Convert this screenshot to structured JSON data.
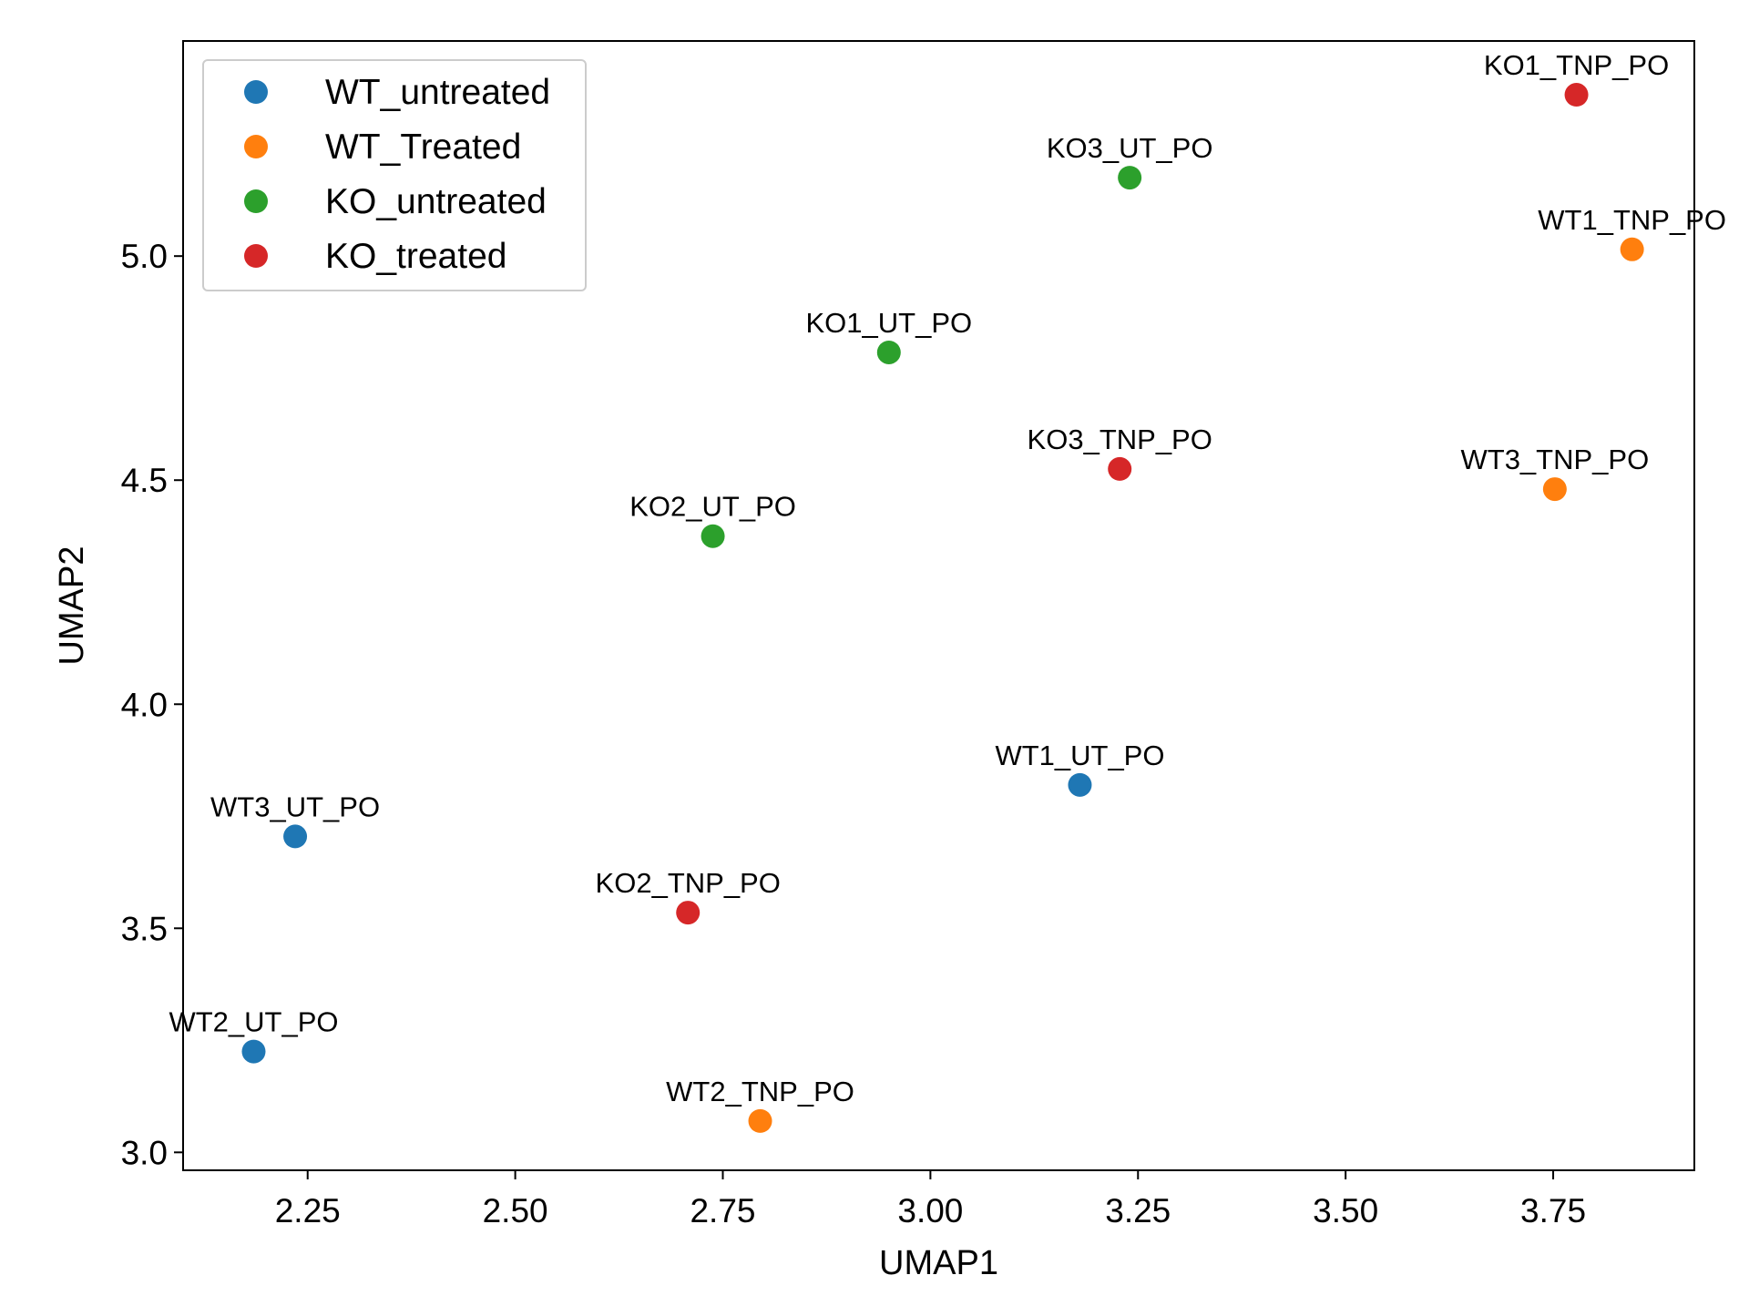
{
  "chart_data": {
    "type": "scatter",
    "title": "",
    "xlabel": "UMAP1",
    "ylabel": "UMAP2",
    "xlim": [
      2.1,
      3.92
    ],
    "ylim": [
      2.96,
      5.48
    ],
    "xticks": [
      2.25,
      2.5,
      2.75,
      3.0,
      3.25,
      3.5,
      3.75
    ],
    "xtick_labels": [
      "2.25",
      "2.50",
      "2.75",
      "3.00",
      "3.25",
      "3.50",
      "3.75"
    ],
    "yticks": [
      3.0,
      3.5,
      4.0,
      4.5,
      5.0
    ],
    "ytick_labels": [
      "3.0",
      "3.5",
      "4.0",
      "4.5",
      "5.0"
    ],
    "grid": false,
    "legend_position": "top-left",
    "series": [
      {
        "name": "WT_untreated",
        "color": "#1f77b4",
        "points": [
          {
            "label": "WT1_UT_PO",
            "x": 3.18,
            "y": 3.82
          },
          {
            "label": "WT2_UT_PO",
            "x": 2.185,
            "y": 3.225
          },
          {
            "label": "WT3_UT_PO",
            "x": 2.235,
            "y": 3.705
          }
        ]
      },
      {
        "name": "WT_Treated",
        "color": "#ff7f0e",
        "points": [
          {
            "label": "WT1_TNP_PO",
            "x": 3.845,
            "y": 5.015
          },
          {
            "label": "WT2_TNP_PO",
            "x": 2.795,
            "y": 3.07
          },
          {
            "label": "WT3_TNP_PO",
            "x": 3.752,
            "y": 4.48
          }
        ]
      },
      {
        "name": "KO_untreated",
        "color": "#2ca02c",
        "points": [
          {
            "label": "KO1_UT_PO",
            "x": 2.95,
            "y": 4.785
          },
          {
            "label": "KO2_UT_PO",
            "x": 2.738,
            "y": 4.375
          },
          {
            "label": "KO3_UT_PO",
            "x": 3.24,
            "y": 5.175
          }
        ]
      },
      {
        "name": "KO_treated",
        "color": "#d62728",
        "points": [
          {
            "label": "KO1_TNP_PO",
            "x": 3.778,
            "y": 5.36
          },
          {
            "label": "KO2_TNP_PO",
            "x": 2.708,
            "y": 3.535
          },
          {
            "label": "KO3_TNP_PO",
            "x": 3.228,
            "y": 4.525
          }
        ]
      }
    ]
  }
}
